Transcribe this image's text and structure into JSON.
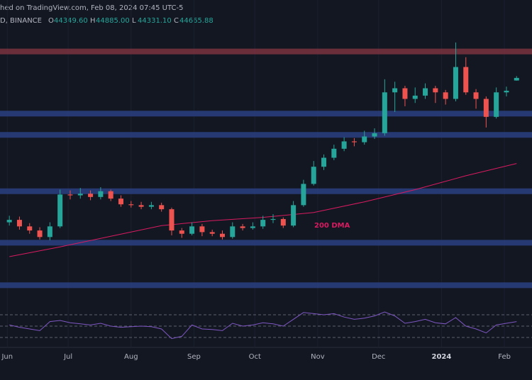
{
  "chart_data": {
    "type": "candlestick",
    "source": "hed on TradingView.com, Feb 08, 2024 07:45 UTC-5",
    "symbol": "D, BINANCE",
    "ohlc_legend": {
      "labels": [
        "O",
        "H",
        "L",
        "C"
      ],
      "values": [
        44349.6,
        44885,
        44331.1,
        44665.88
      ],
      "value_labels": [
        "44349.60",
        "44885.00",
        "44331.10",
        "44665.88"
      ]
    },
    "up_color": "#26a69a",
    "down_color": "#ef5350",
    "x": [
      6,
      11,
      16,
      21,
      26,
      31,
      36,
      41,
      46,
      51,
      56,
      61,
      66,
      71,
      76,
      81,
      86,
      91,
      96,
      101,
      106,
      111,
      116,
      121,
      126,
      131,
      136,
      141,
      146,
      151,
      156,
      161,
      166,
      171,
      176,
      181,
      186,
      191,
      196,
      201,
      206,
      211,
      216,
      221,
      226,
      231,
      236,
      241,
      246,
      251,
      256
    ],
    "open": [
      27000,
      27300,
      26500,
      26000,
      25200,
      26500,
      30400,
      30300,
      30500,
      30100,
      30800,
      29900,
      29200,
      29100,
      28900,
      29100,
      28600,
      26000,
      25600,
      26500,
      25800,
      25600,
      25200,
      26500,
      26300,
      26500,
      27300,
      27400,
      26600,
      29100,
      31700,
      33800,
      34900,
      36000,
      36900,
      36800,
      37500,
      37900,
      42900,
      43400,
      42100,
      42500,
      43400,
      42900,
      42100,
      46000,
      42900,
      42100,
      39900,
      42900,
      44349.6
    ],
    "high": [
      27800,
      27700,
      26900,
      26400,
      27000,
      31000,
      30900,
      31200,
      30900,
      31300,
      31000,
      30300,
      29600,
      29500,
      29500,
      29400,
      28800,
      26300,
      27000,
      26800,
      26100,
      26000,
      27000,
      26800,
      27000,
      27800,
      28000,
      27600,
      29600,
      32200,
      34500,
      35300,
      36500,
      37400,
      37300,
      38200,
      38500,
      44500,
      44200,
      43700,
      43500,
      44000,
      43700,
      43200,
      49000,
      47200,
      43300,
      42400,
      43500,
      43600,
      44885
    ],
    "low": [
      26600,
      26100,
      25600,
      24900,
      24800,
      26300,
      29800,
      29900,
      29700,
      29800,
      29600,
      28900,
      28800,
      28600,
      28600,
      28300,
      25400,
      25100,
      25400,
      25300,
      25300,
      24900,
      25000,
      26000,
      26100,
      26200,
      26900,
      26300,
      26400,
      28900,
      31500,
      33400,
      34600,
      35700,
      36300,
      36500,
      37200,
      37600,
      40500,
      41200,
      41600,
      42100,
      41600,
      41400,
      41800,
      42600,
      40900,
      38600,
      39700,
      42400,
      44331.1
    ],
    "close": [
      27300,
      26500,
      26000,
      25200,
      26500,
      30400,
      30300,
      30500,
      30100,
      30800,
      29900,
      29200,
      29100,
      28900,
      29100,
      28600,
      26000,
      25600,
      26500,
      25800,
      25600,
      25200,
      26500,
      26300,
      26500,
      27300,
      27400,
      26600,
      29100,
      31700,
      33800,
      34900,
      36000,
      36900,
      36800,
      37500,
      37900,
      42900,
      43400,
      42100,
      42500,
      43400,
      42900,
      42100,
      46000,
      42900,
      42100,
      39900,
      42900,
      43100,
      44665.88
    ],
    "xlim": [
      1.4,
      263.6
    ],
    "ylim": [
      16900,
      54200
    ],
    "xticks": [
      {
        "value": 5,
        "label": "Jun"
      },
      {
        "value": 35,
        "label": "Jul"
      },
      {
        "value": 66,
        "label": "Aug"
      },
      {
        "value": 97,
        "label": "Sep"
      },
      {
        "value": 127,
        "label": "Oct"
      },
      {
        "value": 158,
        "label": "Nov"
      },
      {
        "value": 188,
        "label": "Dec"
      },
      {
        "value": 219,
        "label": "2024"
      },
      {
        "value": 250,
        "label": "Feb"
      }
    ],
    "levels": {
      "values": [
        47900,
        40300,
        37700,
        30800,
        24500,
        19300
      ],
      "colors": [
        "#7a3340",
        "#2b3f80",
        "#2b3f80",
        "#2b3f80",
        "#2b3f80",
        "#2b3f80"
      ]
    },
    "dma": {
      "label": "200 DMA",
      "color": "#d81b60",
      "x": [
        6,
        31,
        56,
        81,
        106,
        131,
        156,
        181,
        206,
        231,
        256
      ],
      "values": [
        22800,
        24000,
        25300,
        26600,
        27200,
        27600,
        28200,
        29500,
        31000,
        32700,
        34200
      ]
    },
    "rsi": {
      "color": "#7e57c2",
      "ylim": [
        20,
        80
      ],
      "levels": [
        70,
        50,
        30
      ],
      "values": [
        52,
        48,
        45,
        42,
        58,
        60,
        56,
        54,
        52,
        55,
        50,
        48,
        49,
        50,
        49,
        45,
        28,
        32,
        52,
        45,
        44,
        42,
        55,
        50,
        52,
        56,
        54,
        50,
        62,
        74,
        72,
        70,
        72,
        66,
        62,
        64,
        68,
        75,
        68,
        55,
        58,
        62,
        56,
        54,
        65,
        50,
        45,
        38,
        52,
        55,
        58
      ]
    }
  }
}
